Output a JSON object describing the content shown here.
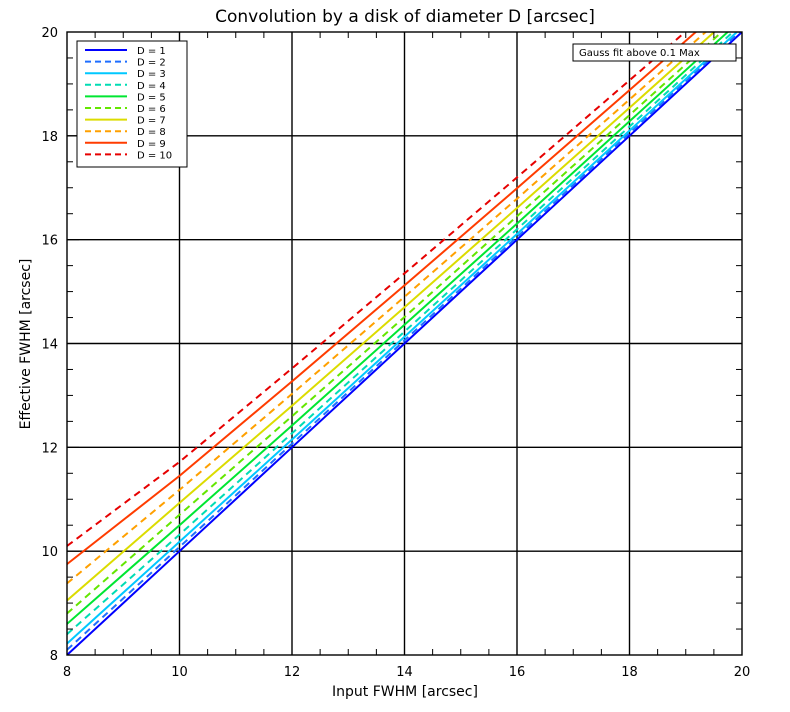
{
  "chart_data": {
    "type": "line",
    "title": "Convolution by a disk of diameter D [arcsec]",
    "xlabel": "Input FWHM [arcsec]",
    "ylabel": "Effective FWHM [arcsec]",
    "xlim": [
      8,
      20
    ],
    "ylim": [
      8,
      20
    ],
    "xticks": [
      8,
      10,
      12,
      14,
      16,
      18,
      20
    ],
    "yticks": [
      8,
      10,
      12,
      14,
      16,
      18,
      20
    ],
    "grid": true,
    "legend": "top-left",
    "annotation": "Gauss fit above 0.1 Max",
    "x": [
      8,
      10,
      12,
      14,
      16,
      18,
      20
    ],
    "series": [
      {
        "name": "D = 1",
        "color": "#0000ff",
        "dash": "solid",
        "values": [
          8.0,
          10.0,
          12.0,
          14.0,
          16.0,
          18.0,
          20.0
        ]
      },
      {
        "name": "D = 2",
        "color": "#1e6eff",
        "dash": "dashed",
        "values": [
          8.1,
          10.08,
          12.07,
          14.06,
          16.05,
          18.05,
          20.04
        ]
      },
      {
        "name": "D = 3",
        "color": "#00c8ff",
        "dash": "solid",
        "values": [
          8.22,
          10.18,
          12.15,
          14.13,
          16.11,
          18.1,
          20.09
        ]
      },
      {
        "name": "D = 4",
        "color": "#00dcb4",
        "dash": "dashed",
        "values": [
          8.4,
          10.32,
          12.27,
          14.23,
          16.2,
          18.18,
          20.16
        ]
      },
      {
        "name": "D = 5",
        "color": "#00e632",
        "dash": "solid",
        "values": [
          8.6,
          10.5,
          12.42,
          14.36,
          16.31,
          18.28,
          20.25
        ]
      },
      {
        "name": "D = 6",
        "color": "#64e600",
        "dash": "dashed",
        "values": [
          8.8,
          10.7,
          12.6,
          14.51,
          16.45,
          18.4,
          20.35
        ]
      },
      {
        "name": "D = 7",
        "color": "#dcdc00",
        "dash": "solid",
        "values": [
          9.05,
          10.93,
          12.8,
          14.7,
          16.61,
          18.54,
          20.48
        ]
      },
      {
        "name": "D = 8",
        "color": "#ffa000",
        "dash": "dashed",
        "values": [
          9.38,
          11.18,
          13.03,
          14.9,
          16.79,
          18.7,
          20.62
        ]
      },
      {
        "name": "D = 9",
        "color": "#ff3c00",
        "dash": "solid",
        "values": [
          9.75,
          11.45,
          13.27,
          15.12,
          16.99,
          18.88,
          20.78
        ]
      },
      {
        "name": "D = 10",
        "color": "#e60000",
        "dash": "dashed",
        "values": [
          10.1,
          11.72,
          13.52,
          15.35,
          17.2,
          19.07,
          20.95
        ]
      }
    ]
  }
}
